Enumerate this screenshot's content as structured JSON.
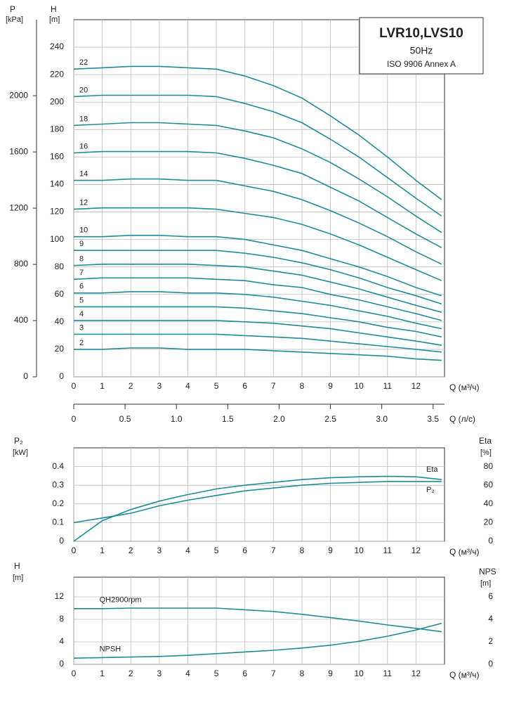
{
  "chart_data": [
    {
      "type": "line",
      "title": "LVR10,LVS10",
      "subtitle": "50Hz",
      "annotation": "ISO 9906 Annex A",
      "ylabel": "H",
      "yunit": "[m]",
      "y2label": "P",
      "y2unit": "[kPa]",
      "xlabel": "Q (м³/ч)",
      "x2label": "Q (л/с)",
      "x": [
        0,
        1,
        2,
        3,
        4,
        5,
        6,
        7,
        8,
        9,
        10,
        11,
        12,
        12.9
      ],
      "xlim": [
        0,
        13
      ],
      "xticks": [
        0,
        1,
        2,
        3,
        4,
        5,
        6,
        7,
        8,
        9,
        10,
        11,
        12
      ],
      "x2lim": [
        0,
        3.611
      ],
      "x2ticks": [
        0,
        0.5,
        {
          "value": 1,
          "label": "1.0"
        },
        1.5,
        {
          "value": 2,
          "label": "2.0"
        },
        2.5,
        {
          "value": 3,
          "label": "3.0"
        },
        3.5
      ],
      "ylim": [
        0,
        260
      ],
      "yticks": [
        0,
        20,
        40,
        60,
        80,
        100,
        120,
        140,
        160,
        180,
        200,
        220,
        240
      ],
      "y2lim": [
        0,
        2541
      ],
      "y2ticks": [
        0,
        400,
        800,
        1200,
        1600,
        2000
      ],
      "grid": true,
      "series": [
        {
          "name": "2",
          "color": "#1f8c98",
          "values": [
            20,
            20,
            21,
            21,
            20,
            20,
            20,
            19,
            18,
            17,
            16,
            15,
            13,
            12
          ]
        },
        {
          "name": "3",
          "color": "#1f8c98",
          "values": [
            31,
            31,
            31,
            31,
            31,
            31,
            30,
            29,
            28,
            26,
            24,
            22,
            20,
            18
          ]
        },
        {
          "name": "4",
          "color": "#1f8c98",
          "values": [
            41,
            41,
            41,
            41,
            41,
            41,
            40,
            39,
            37,
            35,
            32,
            29,
            26,
            23
          ]
        },
        {
          "name": "5",
          "color": "#1f8c98",
          "values": [
            51,
            51,
            51,
            51,
            51,
            51,
            50,
            48,
            46,
            43,
            40,
            36,
            33,
            29
          ]
        },
        {
          "name": "6",
          "color": "#1f8c98",
          "values": [
            61,
            61,
            62,
            62,
            61,
            61,
            60,
            58,
            55,
            52,
            48,
            44,
            39,
            35
          ]
        },
        {
          "name": "7",
          "color": "#1f8c98",
          "values": [
            71,
            72,
            72,
            72,
            72,
            71,
            70,
            67,
            65,
            60,
            56,
            51,
            46,
            41
          ]
        },
        {
          "name": "8",
          "color": "#1f8c98",
          "values": [
            81,
            82,
            82,
            82,
            82,
            81,
            80,
            77,
            74,
            69,
            64,
            58,
            52,
            47
          ]
        },
        {
          "name": "9",
          "color": "#1f8c98",
          "values": [
            92,
            92,
            92,
            92,
            92,
            92,
            90,
            87,
            83,
            78,
            72,
            65,
            59,
            53
          ]
        },
        {
          "name": "10",
          "color": "#1f8c98",
          "values": [
            102,
            102,
            103,
            103,
            102,
            102,
            100,
            96,
            92,
            86,
            80,
            73,
            65,
            59
          ]
        },
        {
          "name": "12",
          "color": "#1f8c98",
          "values": [
            122,
            123,
            123,
            123,
            123,
            122,
            119,
            116,
            111,
            104,
            96,
            87,
            78,
            70
          ]
        },
        {
          "name": "14",
          "color": "#1f8c98",
          "values": [
            143,
            143,
            144,
            144,
            143,
            143,
            139,
            135,
            129,
            121,
            112,
            102,
            91,
            82
          ]
        },
        {
          "name": "16",
          "color": "#1f8c98",
          "values": [
            163,
            164,
            164,
            164,
            164,
            163,
            159,
            154,
            148,
            138,
            128,
            116,
            104,
            94
          ]
        },
        {
          "name": "18",
          "color": "#1f8c98",
          "values": [
            183,
            184,
            185,
            185,
            184,
            183,
            179,
            174,
            166,
            156,
            144,
            131,
            117,
            105
          ]
        },
        {
          "name": "20",
          "color": "#1f8c98",
          "values": [
            204,
            205,
            205,
            205,
            205,
            204,
            199,
            193,
            185,
            173,
            160,
            145,
            130,
            117
          ]
        },
        {
          "name": "22",
          "color": "#1f8c98",
          "values": [
            224,
            225,
            226,
            226,
            225,
            224,
            219,
            212,
            203,
            190,
            176,
            160,
            143,
            129
          ]
        }
      ]
    },
    {
      "type": "line",
      "ylabel": "P₂",
      "yunit": "[kW]",
      "y2label": "Eta",
      "y2unit": "[%]",
      "xlabel": "Q (м³/ч)",
      "x": [
        0,
        1,
        2,
        3,
        4,
        5,
        6,
        7,
        8,
        9,
        10,
        11,
        12,
        12.9
      ],
      "xlim": [
        0,
        13
      ],
      "xticks": [
        0,
        1,
        2,
        3,
        4,
        5,
        6,
        7,
        8,
        9,
        10,
        11,
        12
      ],
      "ylim": [
        0,
        0.5
      ],
      "yticks": [
        0,
        0.1,
        0.2,
        0.3,
        0.4
      ],
      "y2lim": [
        0,
        100
      ],
      "y2ticks": [
        0,
        20,
        40,
        60,
        80
      ],
      "grid": true,
      "series": [
        {
          "name": "Eta",
          "color": "#1f8c98",
          "axis": "y2",
          "values": [
            0,
            22,
            34,
            43,
            50,
            56,
            60,
            63,
            66,
            68,
            69,
            69.5,
            69,
            66
          ]
        },
        {
          "name": "P₂",
          "color": "#1f8c98",
          "values": [
            0.1,
            0.125,
            0.15,
            0.19,
            0.22,
            0.245,
            0.27,
            0.285,
            0.3,
            0.31,
            0.315,
            0.32,
            0.32,
            0.32
          ]
        }
      ]
    },
    {
      "type": "line",
      "ylabel": "H",
      "yunit": "[m]",
      "y2label": "NPS",
      "y2unit": "[m]",
      "xlabel": "Q (м³/ч)",
      "x": [
        0,
        1,
        2,
        3,
        4,
        5,
        6,
        7,
        8,
        9,
        10,
        11,
        12,
        12.9
      ],
      "xlim": [
        0,
        13
      ],
      "xticks": [
        0,
        1,
        2,
        3,
        4,
        5,
        6,
        7,
        8,
        9,
        10,
        11,
        12
      ],
      "ylim": [
        0,
        15.5
      ],
      "yticks": [
        0,
        4,
        8,
        12
      ],
      "y2lim": [
        0,
        7.75
      ],
      "y2ticks": [
        0,
        2,
        4,
        6
      ],
      "grid": true,
      "series": [
        {
          "name": "QH2900rpm",
          "color": "#1f8c98",
          "values": [
            9.9,
            9.9,
            10,
            10,
            10,
            10,
            9.7,
            9.4,
            8.9,
            8.3,
            7.7,
            7,
            6.4,
            5.8
          ]
        },
        {
          "name": "NPSH",
          "color": "#1f8c98",
          "axis": "y2",
          "values": [
            0.55,
            0.6,
            0.65,
            0.7,
            0.8,
            0.95,
            1.1,
            1.25,
            1.45,
            1.7,
            2.05,
            2.5,
            3.05,
            3.65
          ]
        }
      ]
    }
  ]
}
